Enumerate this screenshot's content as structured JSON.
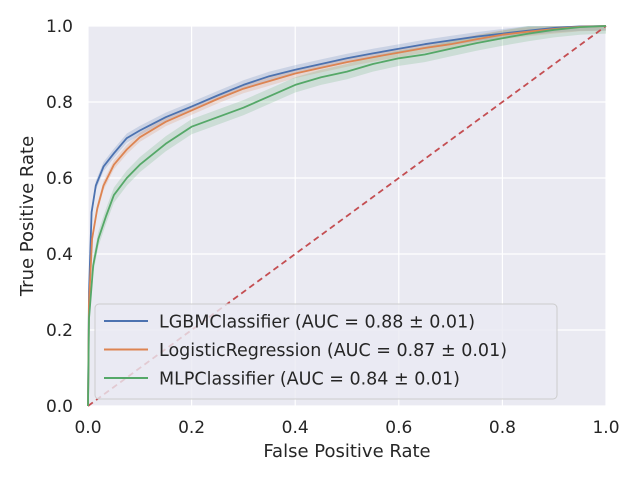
{
  "chart_data": {
    "type": "line",
    "title": "",
    "xlabel": "False Positive Rate",
    "ylabel": "True Positive Rate",
    "xlim": [
      0.0,
      1.0
    ],
    "ylim": [
      0.0,
      1.0
    ],
    "x_ticks": [
      "0.0",
      "0.2",
      "0.4",
      "0.6",
      "0.8",
      "1.0"
    ],
    "y_ticks": [
      "0.0",
      "0.2",
      "0.4",
      "0.6",
      "0.8",
      "1.0"
    ],
    "grid": true,
    "legend_position": "lower-right",
    "series": [
      {
        "name": "LGBMClassifier (AUC = 0.88 ± 0.01)",
        "color": "#4c72b0",
        "band": 0.012,
        "points": [
          [
            0,
            0
          ],
          [
            0.002,
            0.3
          ],
          [
            0.007,
            0.51
          ],
          [
            0.015,
            0.58
          ],
          [
            0.03,
            0.63
          ],
          [
            0.05,
            0.665
          ],
          [
            0.075,
            0.705
          ],
          [
            0.1,
            0.725
          ],
          [
            0.15,
            0.76
          ],
          [
            0.2,
            0.788
          ],
          [
            0.25,
            0.817
          ],
          [
            0.3,
            0.845
          ],
          [
            0.35,
            0.868
          ],
          [
            0.4,
            0.885
          ],
          [
            0.45,
            0.9
          ],
          [
            0.5,
            0.915
          ],
          [
            0.55,
            0.928
          ],
          [
            0.6,
            0.94
          ],
          [
            0.65,
            0.952
          ],
          [
            0.7,
            0.962
          ],
          [
            0.75,
            0.972
          ],
          [
            0.8,
            0.98
          ],
          [
            0.85,
            0.988
          ],
          [
            0.9,
            0.995
          ],
          [
            0.95,
            0.999
          ],
          [
            1.0,
            1.0
          ]
        ]
      },
      {
        "name": "LogisticRegression (AUC = 0.87 ± 0.01)",
        "color": "#dd8452",
        "band": 0.012,
        "points": [
          [
            0,
            0
          ],
          [
            0.002,
            0.27
          ],
          [
            0.008,
            0.44
          ],
          [
            0.018,
            0.52
          ],
          [
            0.03,
            0.58
          ],
          [
            0.05,
            0.635
          ],
          [
            0.075,
            0.675
          ],
          [
            0.1,
            0.707
          ],
          [
            0.15,
            0.748
          ],
          [
            0.2,
            0.778
          ],
          [
            0.25,
            0.808
          ],
          [
            0.3,
            0.835
          ],
          [
            0.35,
            0.855
          ],
          [
            0.4,
            0.875
          ],
          [
            0.45,
            0.89
          ],
          [
            0.5,
            0.905
          ],
          [
            0.55,
            0.918
          ],
          [
            0.6,
            0.93
          ],
          [
            0.65,
            0.942
          ],
          [
            0.7,
            0.952
          ],
          [
            0.75,
            0.965
          ],
          [
            0.8,
            0.977
          ],
          [
            0.85,
            0.985
          ],
          [
            0.9,
            0.992
          ],
          [
            0.95,
            0.998
          ],
          [
            1.0,
            1.0
          ]
        ]
      },
      {
        "name": "MLPClassifier (AUC = 0.84 ± 0.01)",
        "color": "#55a868",
        "band": 0.02,
        "points": [
          [
            0,
            0
          ],
          [
            0.002,
            0.23
          ],
          [
            0.01,
            0.37
          ],
          [
            0.02,
            0.44
          ],
          [
            0.035,
            0.5
          ],
          [
            0.05,
            0.555
          ],
          [
            0.075,
            0.6
          ],
          [
            0.1,
            0.635
          ],
          [
            0.15,
            0.69
          ],
          [
            0.2,
            0.735
          ],
          [
            0.25,
            0.76
          ],
          [
            0.3,
            0.785
          ],
          [
            0.35,
            0.815
          ],
          [
            0.4,
            0.845
          ],
          [
            0.45,
            0.865
          ],
          [
            0.5,
            0.88
          ],
          [
            0.55,
            0.9
          ],
          [
            0.6,
            0.915
          ],
          [
            0.65,
            0.925
          ],
          [
            0.7,
            0.94
          ],
          [
            0.75,
            0.955
          ],
          [
            0.8,
            0.968
          ],
          [
            0.85,
            0.98
          ],
          [
            0.9,
            0.99
          ],
          [
            0.95,
            0.997
          ],
          [
            1.0,
            1.0
          ]
        ]
      }
    ],
    "reference_line": {
      "color": "#c44e52",
      "points": [
        [
          0,
          0
        ],
        [
          1,
          1
        ]
      ]
    }
  }
}
